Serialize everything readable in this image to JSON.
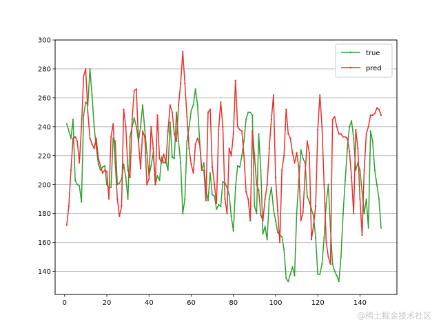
{
  "chart_data": {
    "type": "line",
    "title": "",
    "xlabel": "",
    "ylabel": "",
    "xlim": [
      -4.5,
      157.5
    ],
    "ylim": [
      124,
      300
    ],
    "xticks": [
      0,
      20,
      40,
      60,
      80,
      100,
      120,
      140
    ],
    "yticks": [
      140,
      160,
      180,
      200,
      220,
      240,
      260,
      280,
      300
    ],
    "grid": "horizontal",
    "legend_position": "top-right",
    "colors": {
      "true": "#2ca02c",
      "pred": "#e8302b",
      "grid": "#b0b0b0"
    },
    "series": [
      {
        "name": "true",
        "x": [
          1,
          3,
          4,
          5,
          6,
          7,
          8,
          9,
          10,
          11,
          12,
          13,
          14,
          15,
          16,
          17,
          18,
          19,
          20,
          21,
          22,
          23,
          24,
          25,
          26,
          27,
          28,
          29,
          30,
          31,
          32,
          33,
          34,
          35,
          36,
          37,
          38,
          39,
          40,
          41,
          42,
          43,
          44,
          45,
          46,
          47,
          48,
          49,
          50,
          51,
          52,
          53,
          54,
          55,
          56,
          57,
          58,
          59,
          60,
          61,
          62,
          63,
          64,
          65,
          66,
          67,
          68,
          69,
          70,
          71,
          72,
          73,
          74,
          75,
          76,
          77,
          78,
          79,
          80,
          81,
          82,
          83,
          84,
          85,
          86,
          87,
          88,
          89,
          90,
          91,
          92,
          93,
          94,
          95,
          96,
          97,
          98,
          99,
          100,
          101,
          102,
          103,
          104,
          105,
          106,
          107,
          108,
          109,
          110,
          111,
          112,
          113,
          114,
          115,
          116,
          117,
          118,
          119,
          120,
          121,
          122,
          123,
          124,
          125,
          126,
          127,
          128,
          129,
          130,
          131,
          132,
          133,
          134,
          135,
          136,
          137,
          138,
          139,
          140,
          141,
          142,
          143,
          144,
          145,
          146,
          147,
          148,
          149,
          150
        ],
        "y": [
          242,
          232,
          245,
          203,
          200,
          199,
          188,
          248,
          257,
          255,
          280,
          262,
          240,
          226,
          214,
          210,
          212,
          213,
          200,
          198,
          198,
          232,
          230,
          200,
          201,
          204,
          214,
          205,
          190,
          233,
          240,
          246,
          240,
          230,
          240,
          255,
          238,
          222,
          206,
          213,
          222,
          200,
          206,
          203,
          219,
          215,
          216,
          210,
          243,
          219,
          218,
          250,
          230,
          215,
          180,
          190,
          230,
          240,
          251,
          255,
          266,
          255,
          230,
          210,
          215,
          196,
          189,
          208,
          193,
          192,
          183,
          186,
          185,
          202,
          201,
          198,
          193,
          178,
          168,
          198,
          213,
          212,
          220,
          230,
          245,
          250,
          250,
          248,
          185,
          180,
          235,
          210,
          166,
          171,
          162,
          190,
          198,
          183,
          175,
          167,
          165,
          164,
          155,
          135,
          133,
          138,
          143,
          137,
          180,
          203,
          224,
          218,
          215,
          192,
          188,
          183,
          178,
          163,
          138,
          138,
          145,
          163,
          187,
          200,
          170,
          145,
          140,
          137,
          133,
          150,
          180,
          203,
          225,
          240,
          244,
          232,
          210,
          215,
          210,
          195,
          180,
          190,
          170,
          237,
          230,
          210,
          200,
          190,
          170
        ]
      },
      {
        "name": "pred",
        "x": [
          1,
          2,
          3,
          4,
          5,
          6,
          7,
          8,
          9,
          10,
          11,
          12,
          13,
          14,
          15,
          16,
          17,
          18,
          19,
          20,
          21,
          22,
          23,
          24,
          25,
          26,
          27,
          28,
          29,
          30,
          31,
          32,
          33,
          34,
          35,
          36,
          37,
          38,
          39,
          40,
          41,
          42,
          43,
          44,
          45,
          46,
          47,
          48,
          49,
          50,
          51,
          52,
          53,
          54,
          55,
          56,
          57,
          58,
          59,
          60,
          61,
          62,
          63,
          64,
          65,
          66,
          67,
          68,
          69,
          70,
          71,
          72,
          73,
          74,
          75,
          76,
          77,
          78,
          79,
          80,
          81,
          82,
          83,
          84,
          85,
          86,
          87,
          88,
          89,
          90,
          91,
          92,
          93,
          94,
          95,
          96,
          97,
          98,
          99,
          100,
          101,
          102,
          103,
          104,
          105,
          106,
          107,
          108,
          109,
          110,
          111,
          112,
          113,
          114,
          115,
          116,
          117,
          118,
          119,
          120,
          121,
          122,
          123,
          124,
          125,
          126,
          127,
          128,
          129,
          130,
          131,
          132,
          133,
          134,
          135,
          136,
          137,
          138,
          139,
          140,
          141,
          142,
          143,
          144,
          145,
          146,
          147,
          148,
          149,
          150
        ],
        "y": [
          172,
          185,
          210,
          232,
          233,
          230,
          215,
          240,
          275,
          280,
          250,
          232,
          228,
          225,
          232,
          218,
          213,
          208,
          210,
          209,
          190,
          233,
          242,
          215,
          190,
          178,
          185,
          252,
          240,
          210,
          205,
          245,
          265,
          266,
          230,
          211,
          237,
          233,
          200,
          204,
          240,
          225,
          200,
          248,
          218,
          215,
          221,
          215,
          237,
          255,
          250,
          235,
          230,
          255,
          270,
          292,
          270,
          247,
          225,
          214,
          208,
          228,
          232,
          228,
          210,
          210,
          189,
          250,
          252,
          212,
          200,
          187,
          238,
          257,
          240,
          190,
          180,
          225,
          220,
          235,
          272,
          240,
          238,
          237,
          220,
          195,
          190,
          175,
          237,
          220,
          200,
          196,
          179,
          175,
          190,
          200,
          225,
          245,
          262,
          205,
          182,
          160,
          210,
          220,
          252,
          235,
          232,
          222,
          215,
          222,
          212,
          175,
          181,
          208,
          230,
          222,
          162,
          172,
          185,
          238,
          262,
          240,
          200,
          160,
          150,
          145,
          245,
          247,
          240,
          235,
          235,
          233,
          233,
          232,
          223,
          205,
          180,
          238,
          225,
          190,
          165,
          210,
          235,
          240,
          248,
          248,
          249,
          253,
          252,
          248
        ]
      }
    ]
  },
  "watermark": "@稀土掘金技术社区"
}
